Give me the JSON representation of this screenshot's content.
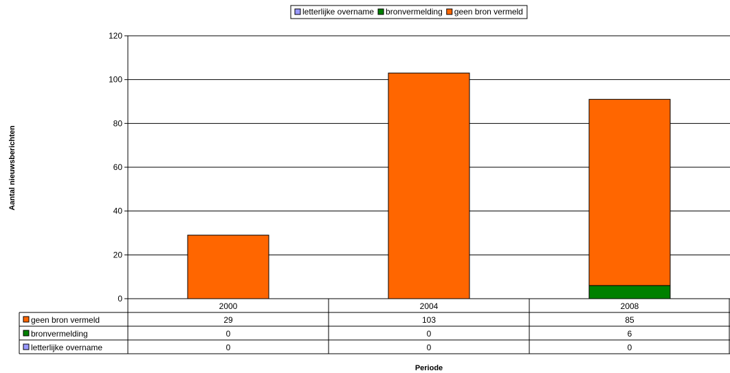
{
  "chart_data": {
    "type": "bar",
    "stacked": true,
    "title": "",
    "xlabel": "Periode",
    "ylabel": "Aantal nieuwsberichten",
    "categories": [
      "2000",
      "2004",
      "2008"
    ],
    "ylim": [
      0,
      120
    ],
    "yticks": [
      0,
      20,
      40,
      60,
      80,
      100,
      120
    ],
    "grid": true,
    "legend_position": "top",
    "legend_order": [
      "letterlijke overname",
      "bronvermelding",
      "geen bron vermeld"
    ],
    "series": [
      {
        "name": "letterlijke overname",
        "values": [
          0,
          0,
          0
        ],
        "color": "#9999ff"
      },
      {
        "name": "bronvermelding",
        "values": [
          0,
          0,
          6
        ],
        "color": "#008000"
      },
      {
        "name": "geen bron vermeld",
        "values": [
          29,
          103,
          85
        ],
        "color": "#ff6600"
      }
    ],
    "table_rows": [
      "geen bron vermeld",
      "bronvermelding",
      "letterlijke overname"
    ]
  }
}
